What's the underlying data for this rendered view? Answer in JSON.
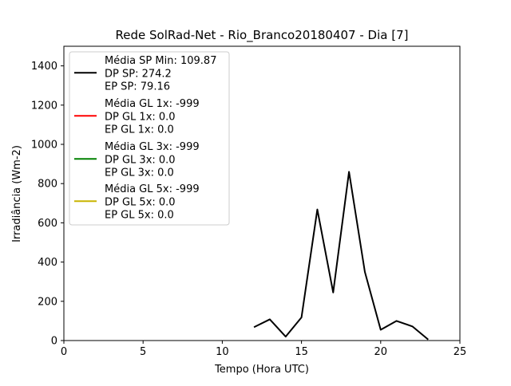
{
  "chart_data": {
    "type": "line",
    "title": "Rede SolRad-Net - Rio_Branco20180407 - Dia [7]",
    "xlabel": "Tempo (Hora UTC)",
    "ylabel": "Irradiância (Wm-2)",
    "xlim": [
      0,
      25
    ],
    "ylim": [
      0,
      1500
    ],
    "xticks": [
      0,
      5,
      10,
      15,
      20,
      25
    ],
    "yticks": [
      0,
      200,
      400,
      600,
      800,
      1000,
      1200,
      1400
    ],
    "grid": false,
    "legend_position": "upper-left",
    "series": [
      {
        "color": "#000000",
        "legend": [
          "Média SP Min: 109.87",
          "DP SP: 274.2",
          "EP SP: 79.16"
        ],
        "x": [
          12,
          13,
          14,
          15,
          16,
          17,
          18,
          19,
          20,
          21,
          22,
          23
        ],
        "y": [
          68,
          108,
          20,
          118,
          668,
          245,
          860,
          350,
          55,
          100,
          72,
          5
        ]
      },
      {
        "color": "#ff0000",
        "legend": [
          "Média GL 1x: -999",
          "DP GL 1x: 0.0",
          "EP GL 1x: 0.0"
        ],
        "x": [],
        "y": []
      },
      {
        "color": "#008000",
        "legend": [
          "Média GL 3x: -999",
          "DP GL 3x: 0.0",
          "EP GL 3x: 0.0"
        ],
        "x": [],
        "y": []
      },
      {
        "color": "#c8b400",
        "legend": [
          "Média GL 5x: -999",
          "DP GL 5x: 0.0",
          "EP GL 5x: 0.0"
        ],
        "x": [],
        "y": []
      }
    ]
  }
}
